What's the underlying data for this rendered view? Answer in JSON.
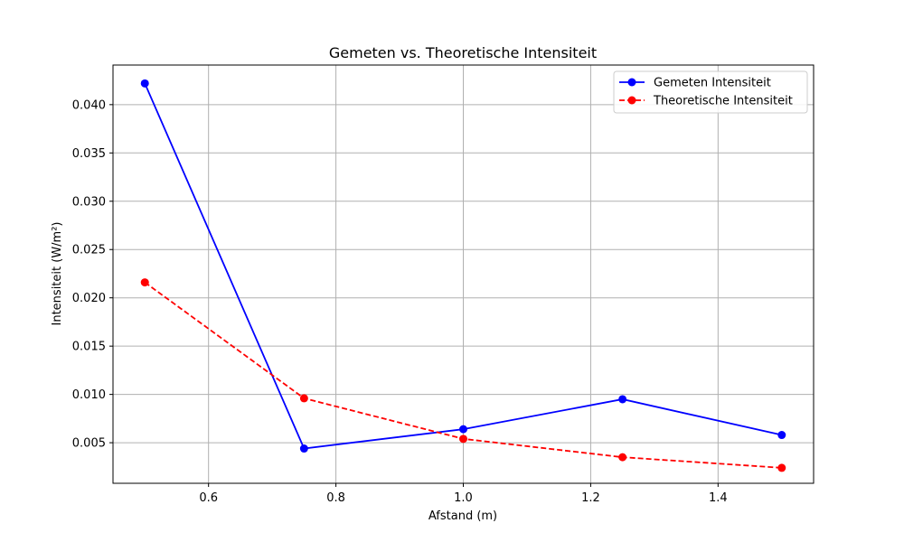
{
  "chart_data": {
    "type": "line",
    "title": "Gemeten vs. Theoretische Intensiteit",
    "xlabel": "Afstand (m)",
    "ylabel": "Intensiteit (W/m²)",
    "x": [
      0.5,
      0.75,
      1.0,
      1.25,
      1.5
    ],
    "xlim": [
      0.45,
      1.55
    ],
    "ylim": [
      0.0008,
      0.0441
    ],
    "xticks": [
      "0.6",
      "0.8",
      "1.0",
      "1.2",
      "1.4"
    ],
    "yticks": [
      "0.005",
      "0.010",
      "0.015",
      "0.020",
      "0.025",
      "0.030",
      "0.035",
      "0.040"
    ],
    "grid": true,
    "legend_position": "top-right",
    "series": [
      {
        "name": "Gemeten Intensiteit",
        "values": [
          0.0422,
          0.0044,
          0.0064,
          0.0095,
          0.0058
        ],
        "color": "#0000ff",
        "linestyle": "solid",
        "marker": "circle"
      },
      {
        "name": "Theoretische Intensiteit",
        "values": [
          0.0216,
          0.0096,
          0.0054,
          0.0035,
          0.0024
        ],
        "color": "#ff0000",
        "linestyle": "dashed",
        "marker": "circle"
      }
    ]
  }
}
